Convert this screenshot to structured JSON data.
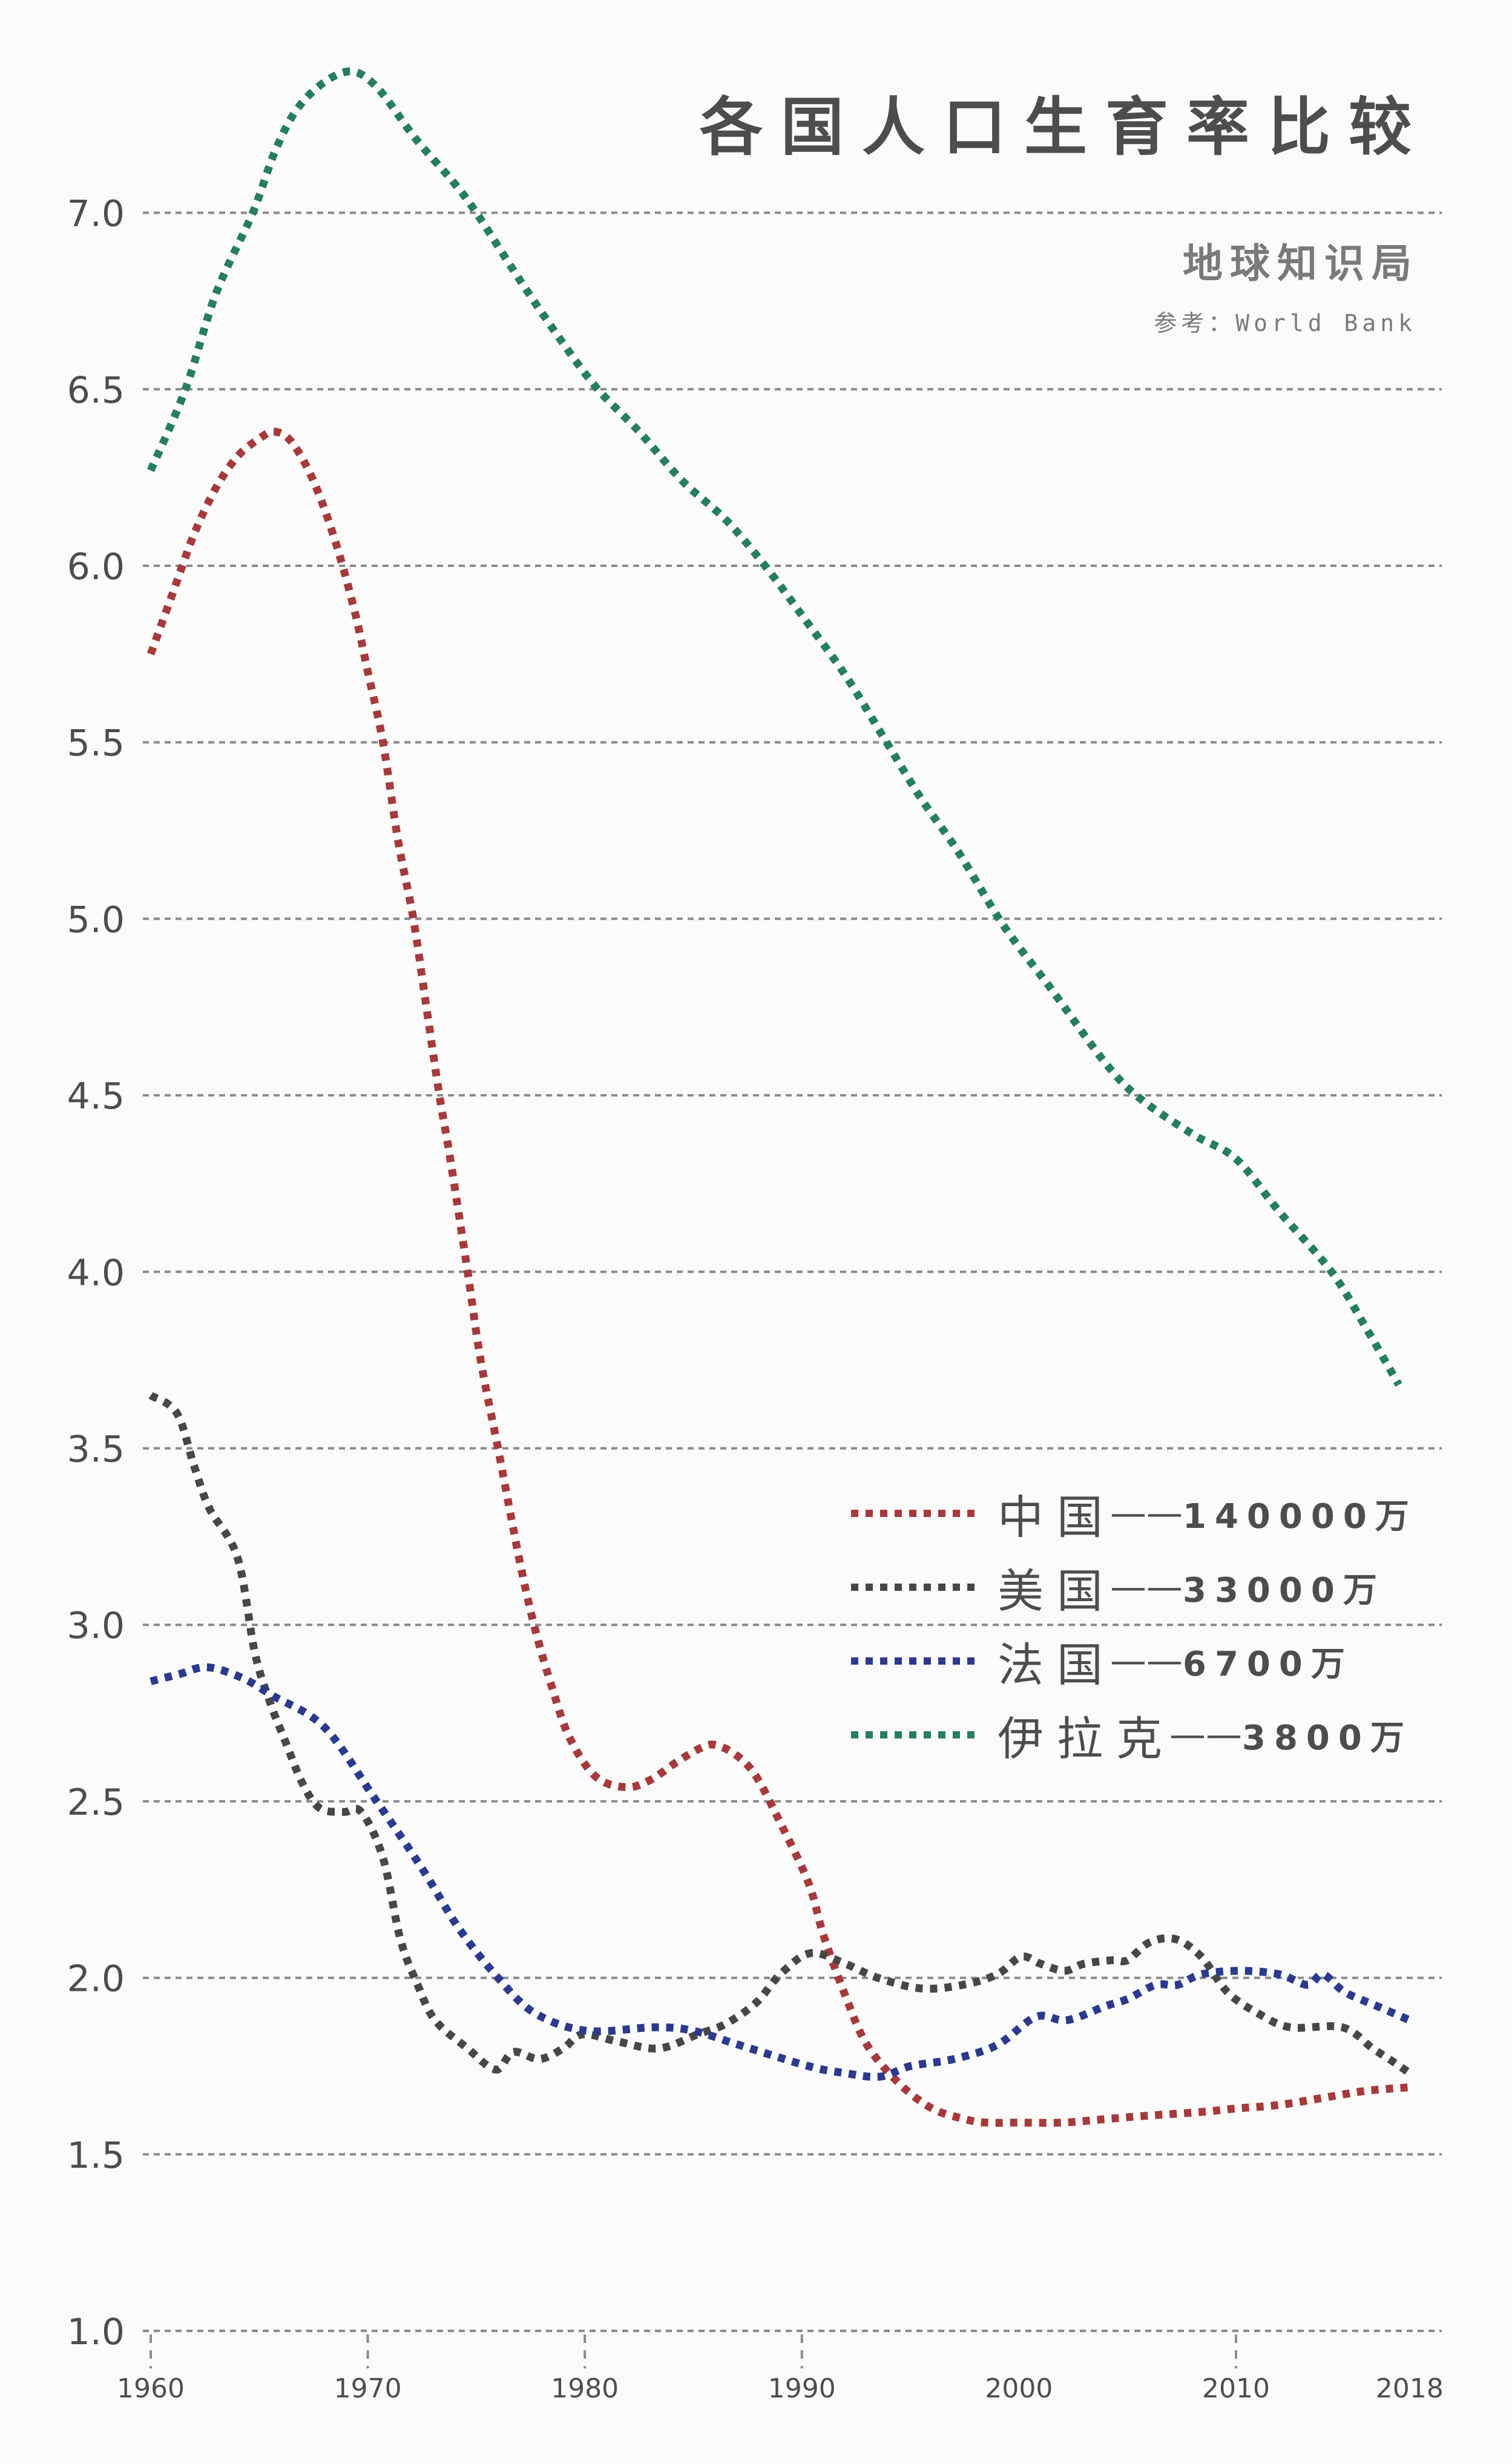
{
  "header": {
    "title": "各国人口生育率比较",
    "subtitle": "地球知识局",
    "source": "参考：World Bank"
  },
  "colors": {
    "background": "#fbfbfb",
    "grid": "#8a8a8a",
    "text": "#4d4d4d",
    "china": "#a8393b",
    "usa": "#474747",
    "france": "#2b3a8f",
    "iraq": "#267e61"
  },
  "legend": [
    {
      "name": "中国",
      "sep": "——",
      "population": "140000万",
      "color": "#a8393b"
    },
    {
      "name": "美国",
      "sep": "——",
      "population": "33000万",
      "color": "#474747"
    },
    {
      "name": "法国",
      "sep": "——",
      "population": "6700万",
      "color": "#2b3a8f"
    },
    {
      "name": "伊拉克",
      "sep": "——",
      "population": "3800万",
      "color": "#267e61"
    }
  ],
  "chart_data": {
    "type": "line",
    "title": "各国人口生育率比较",
    "subtitle": "地球知识局",
    "source": "参考：World Bank",
    "xlabel": "",
    "ylabel": "",
    "xlim": [
      1960,
      2018
    ],
    "ylim": [
      1.0,
      7.4
    ],
    "y_ticks": [
      "1.0",
      "1.5",
      "2.0",
      "2.5",
      "3.0",
      "3.5",
      "4.0",
      "4.5",
      "5.0",
      "5.5",
      "6.0",
      "6.5",
      "7.0"
    ],
    "x_ticks": [
      "1960",
      "1970",
      "1980",
      "1990",
      "2000",
      "2010",
      "2018"
    ],
    "x_tick_marks": [
      1960,
      1970,
      1980,
      1990,
      2010
    ],
    "grid": "horizontal dashed",
    "legend_position": "lower right",
    "line_style": "dotted",
    "series": [
      {
        "name": "中国",
        "population": "140000万",
        "color": "#a8393b",
        "points": [
          [
            1960,
            5.75
          ],
          [
            1961,
            5.92
          ],
          [
            1962,
            6.09
          ],
          [
            1963,
            6.22
          ],
          [
            1964,
            6.31
          ],
          [
            1965,
            6.36
          ],
          [
            1965.7,
            6.38
          ],
          [
            1966.5,
            6.35
          ],
          [
            1967.5,
            6.24
          ],
          [
            1968.5,
            6.07
          ],
          [
            1969.4,
            5.87
          ],
          [
            1970,
            5.7
          ],
          [
            1970.7,
            5.5
          ],
          [
            1971.4,
            5.22
          ],
          [
            1972.1,
            5.0
          ],
          [
            1972.7,
            4.75
          ],
          [
            1973.3,
            4.5
          ],
          [
            1973.8,
            4.32
          ],
          [
            1974.6,
            4.0
          ],
          [
            1975.2,
            3.75
          ],
          [
            1976,
            3.5
          ],
          [
            1977,
            3.18
          ],
          [
            1977.7,
            2.99
          ],
          [
            1978.5,
            2.82
          ],
          [
            1979.3,
            2.68
          ],
          [
            1980.5,
            2.57
          ],
          [
            1981.9,
            2.54
          ],
          [
            1983,
            2.56
          ],
          [
            1984.2,
            2.61
          ],
          [
            1985.3,
            2.65
          ],
          [
            1986,
            2.66
          ],
          [
            1987,
            2.63
          ],
          [
            1987.9,
            2.57
          ],
          [
            1989,
            2.44
          ],
          [
            1990.3,
            2.27
          ],
          [
            1991,
            2.12
          ],
          [
            1992,
            1.95
          ],
          [
            1993,
            1.81
          ],
          [
            1994.5,
            1.7
          ],
          [
            1996,
            1.63
          ],
          [
            1997.5,
            1.6
          ],
          [
            1998.5,
            1.59
          ],
          [
            2000,
            1.59
          ],
          [
            2002,
            1.59
          ],
          [
            2004,
            1.6
          ],
          [
            2006,
            1.61
          ],
          [
            2008.4,
            1.62
          ],
          [
            2010,
            1.63
          ],
          [
            2012,
            1.64
          ],
          [
            2014,
            1.66
          ],
          [
            2016,
            1.68
          ],
          [
            2018,
            1.69
          ]
        ]
      },
      {
        "name": "美国",
        "population": "33000万",
        "color": "#474747",
        "points": [
          [
            1960,
            3.65
          ],
          [
            1961.2,
            3.6
          ],
          [
            1962,
            3.45
          ],
          [
            1962.7,
            3.33
          ],
          [
            1964,
            3.19
          ],
          [
            1964.8,
            2.92
          ],
          [
            1965.5,
            2.78
          ],
          [
            1966.2,
            2.67
          ],
          [
            1967,
            2.55
          ],
          [
            1967.8,
            2.48
          ],
          [
            1968.9,
            2.47
          ],
          [
            1969.7,
            2.47
          ],
          [
            1970.7,
            2.34
          ],
          [
            1971.5,
            2.11
          ],
          [
            1972.3,
            1.98
          ],
          [
            1973.1,
            1.88
          ],
          [
            1974.6,
            1.8
          ],
          [
            1975.9,
            1.74
          ],
          [
            1976.7,
            1.79
          ],
          [
            1977.9,
            1.77
          ],
          [
            1979,
            1.8
          ],
          [
            1979.9,
            1.84
          ],
          [
            1981.5,
            1.82
          ],
          [
            1983.4,
            1.8
          ],
          [
            1985.2,
            1.84
          ],
          [
            1986.5,
            1.87
          ],
          [
            1987.9,
            1.93
          ],
          [
            1989,
            2.01
          ],
          [
            1990.4,
            2.07
          ],
          [
            1992,
            2.04
          ],
          [
            1993.5,
            2.0
          ],
          [
            1995.5,
            1.97
          ],
          [
            1997.4,
            1.98
          ],
          [
            1999,
            2.01
          ],
          [
            2000.1,
            2.06
          ],
          [
            2001,
            2.04
          ],
          [
            2002.1,
            2.02
          ],
          [
            2003,
            2.04
          ],
          [
            2004.3,
            2.05
          ],
          [
            2005,
            2.05
          ],
          [
            2006,
            2.1
          ],
          [
            2007.2,
            2.11
          ],
          [
            2008.4,
            2.06
          ],
          [
            2009.6,
            1.96
          ],
          [
            2011,
            1.9
          ],
          [
            2012.5,
            1.86
          ],
          [
            2014.9,
            1.86
          ],
          [
            2016.3,
            1.8
          ],
          [
            2017.3,
            1.76
          ],
          [
            2018,
            1.73
          ]
        ]
      },
      {
        "name": "法国",
        "population": "6700万",
        "color": "#2b3a8f",
        "points": [
          [
            1960,
            2.84
          ],
          [
            1961.3,
            2.86
          ],
          [
            1962.6,
            2.88
          ],
          [
            1964.2,
            2.85
          ],
          [
            1965.6,
            2.8
          ],
          [
            1968,
            2.71
          ],
          [
            1970.3,
            2.51
          ],
          [
            1972.5,
            2.31
          ],
          [
            1974.2,
            2.14
          ],
          [
            1976,
            2.0
          ],
          [
            1977.7,
            1.9
          ],
          [
            1980.1,
            1.85
          ],
          [
            1983.2,
            1.86
          ],
          [
            1985,
            1.85
          ],
          [
            1987.1,
            1.81
          ],
          [
            1990.3,
            1.75
          ],
          [
            1992,
            1.73
          ],
          [
            1993.6,
            1.72
          ],
          [
            1995,
            1.75
          ],
          [
            1997,
            1.77
          ],
          [
            1999,
            1.81
          ],
          [
            2000.8,
            1.89
          ],
          [
            2002.2,
            1.88
          ],
          [
            2004,
            1.92
          ],
          [
            2005,
            1.94
          ],
          [
            2006.3,
            1.98
          ],
          [
            2007.3,
            1.98
          ],
          [
            2008.4,
            2.01
          ],
          [
            2010.2,
            2.02
          ],
          [
            2012,
            2.01
          ],
          [
            2013.3,
            1.98
          ],
          [
            2014,
            2.01
          ],
          [
            2015,
            1.96
          ],
          [
            2016.5,
            1.92
          ],
          [
            2018,
            1.88
          ]
        ]
      },
      {
        "name": "伊拉克",
        "population": "3800万",
        "color": "#267e61",
        "points": [
          [
            1960,
            6.27
          ],
          [
            1961.6,
            6.5
          ],
          [
            1963,
            6.77
          ],
          [
            1964.7,
            7.0
          ],
          [
            1965.7,
            7.17
          ],
          [
            1966.7,
            7.29
          ],
          [
            1968,
            7.37
          ],
          [
            1969.3,
            7.4
          ],
          [
            1970.5,
            7.35
          ],
          [
            1972.2,
            7.21
          ],
          [
            1973.9,
            7.09
          ],
          [
            1975,
            7.0
          ],
          [
            1977,
            6.81
          ],
          [
            1979,
            6.63
          ],
          [
            1980.6,
            6.5
          ],
          [
            1982.5,
            6.38
          ],
          [
            1984.5,
            6.24
          ],
          [
            1986.5,
            6.13
          ],
          [
            1988.3,
            6.0
          ],
          [
            1990,
            5.86
          ],
          [
            1992,
            5.69
          ],
          [
            1993.9,
            5.5
          ],
          [
            1995.5,
            5.34
          ],
          [
            1997.2,
            5.19
          ],
          [
            1999.3,
            4.98
          ],
          [
            2001.5,
            4.8
          ],
          [
            2004,
            4.59
          ],
          [
            2005.6,
            4.49
          ],
          [
            2008,
            4.39
          ],
          [
            2010,
            4.32
          ],
          [
            2012,
            4.17
          ],
          [
            2014.4,
            4.0
          ],
          [
            2016,
            3.84
          ],
          [
            2017.5,
            3.68
          ]
        ]
      }
    ]
  }
}
